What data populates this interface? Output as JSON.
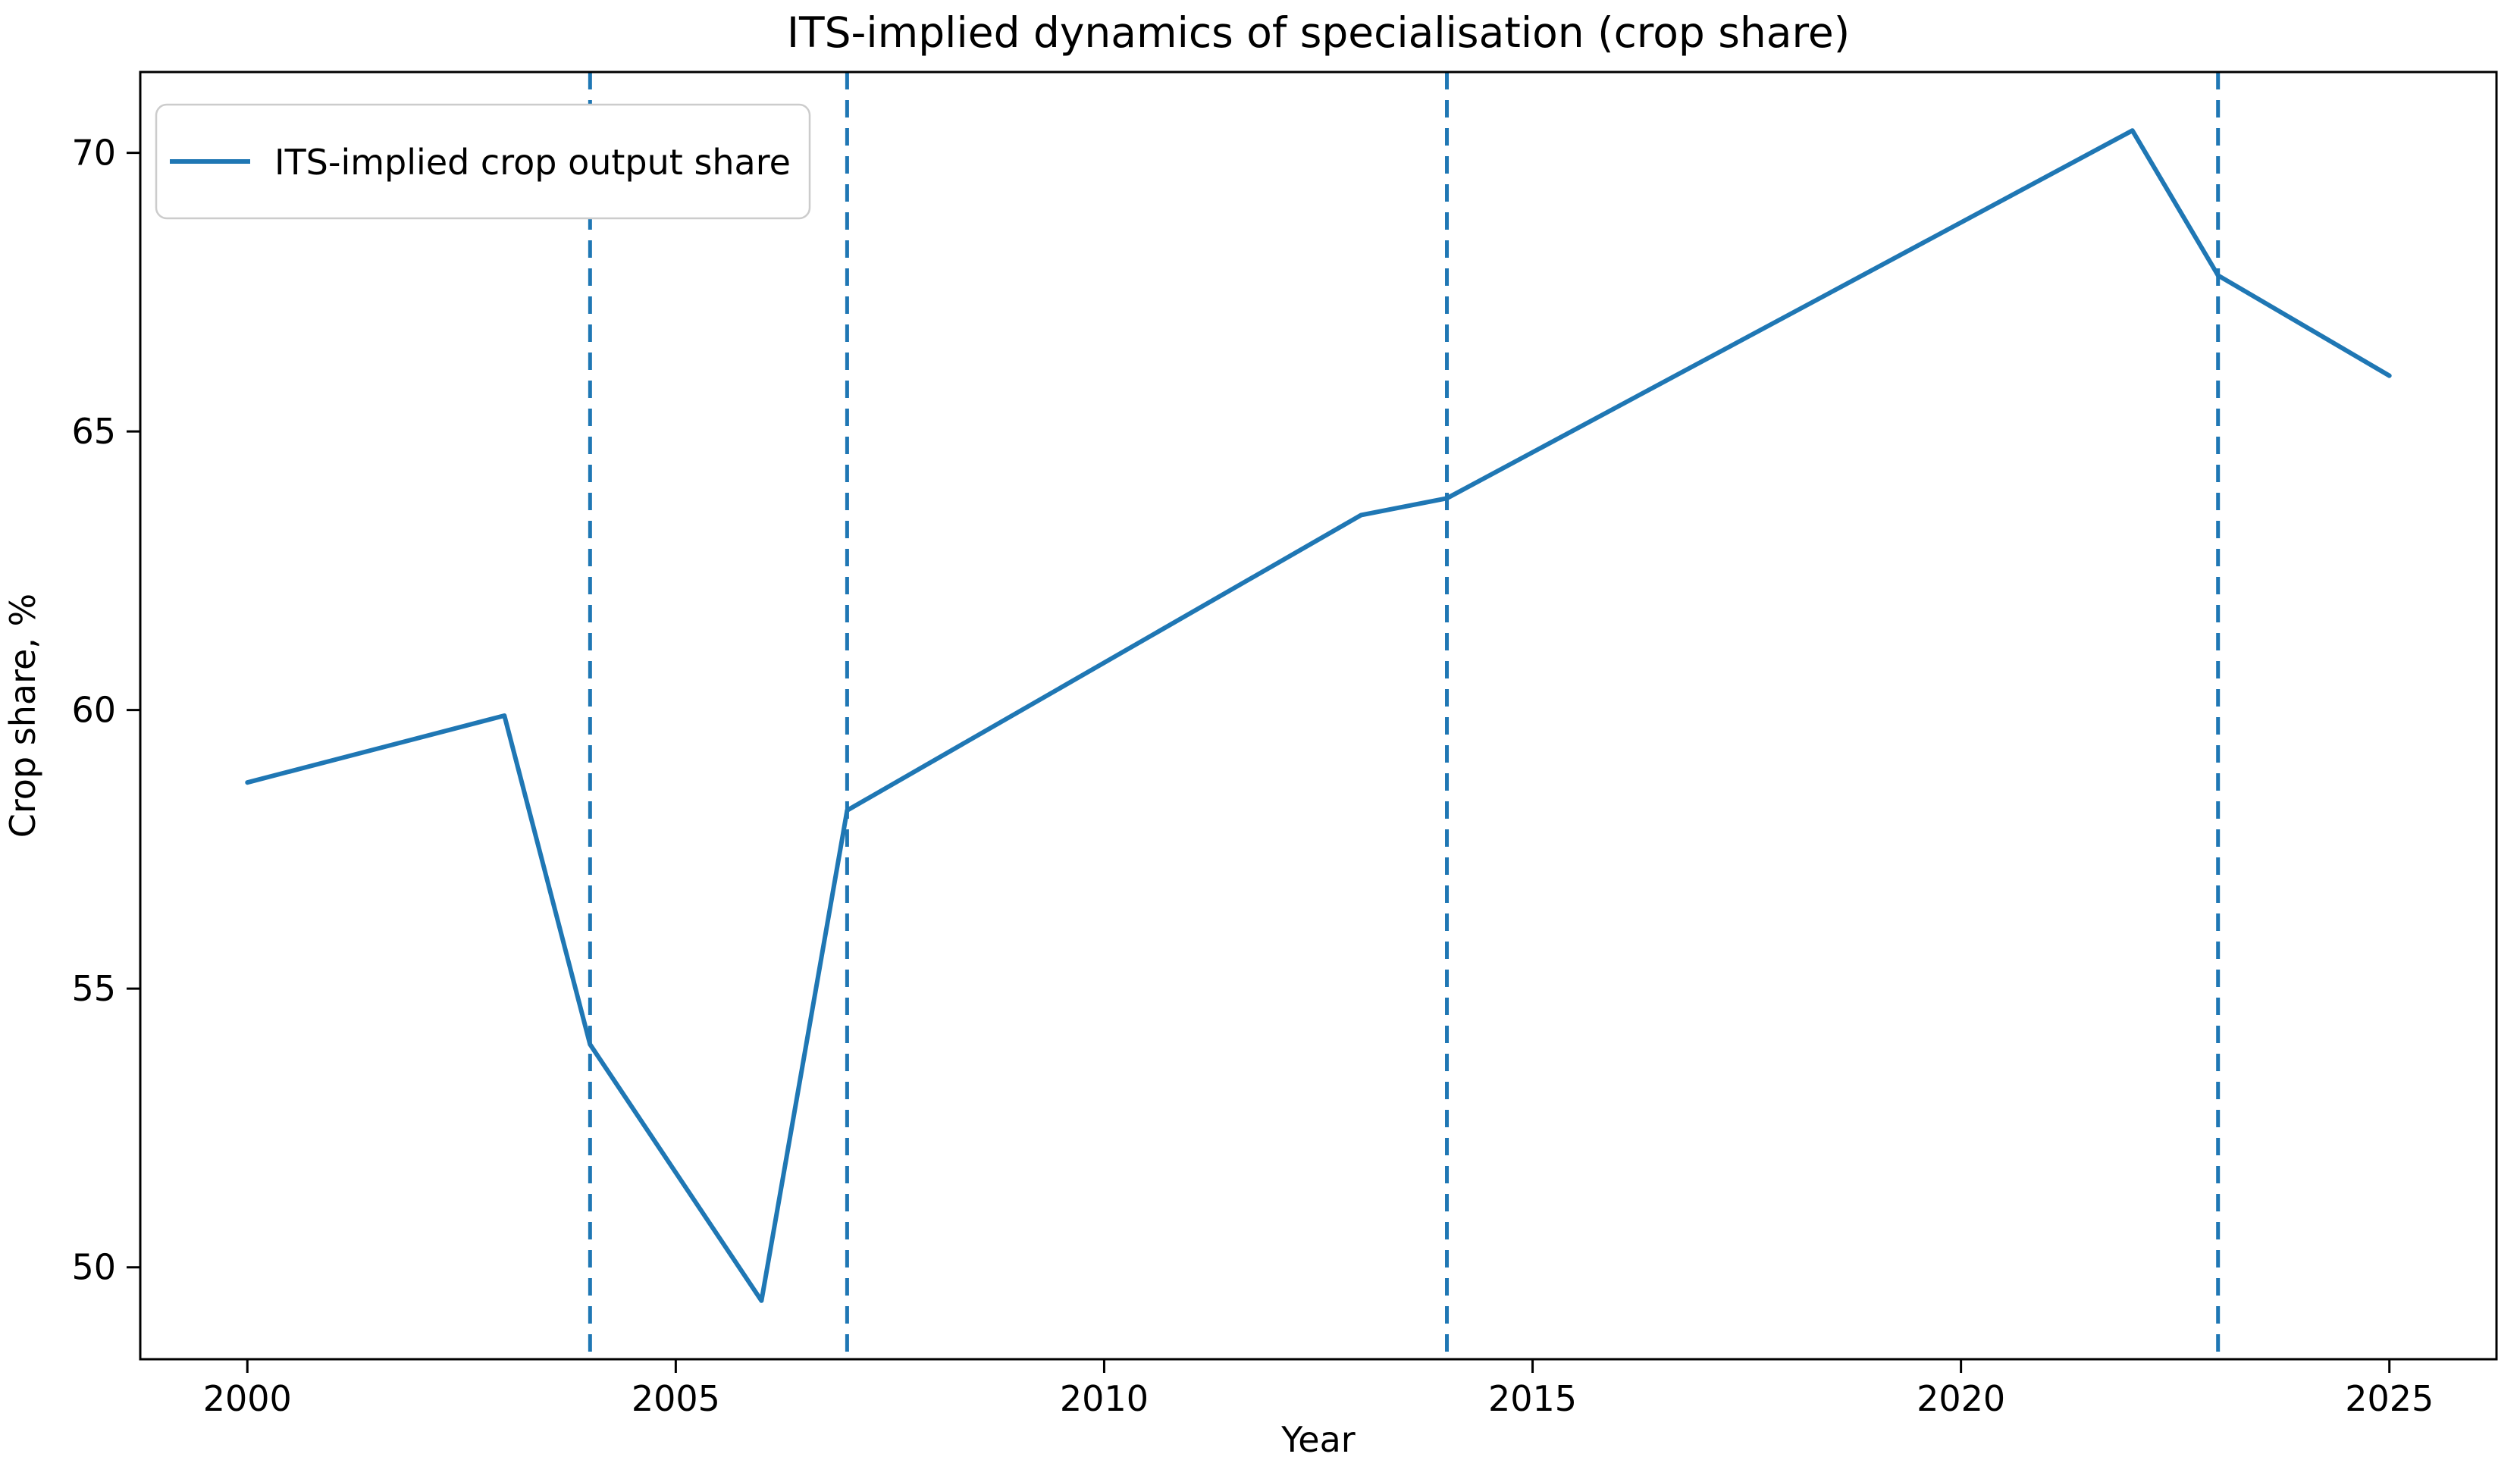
{
  "chart_data": {
    "type": "line",
    "title": "ITS-implied dynamics of specialisation (crop share)",
    "xlabel": "Year",
    "ylabel": "Crop share, %",
    "xlim": [
      1998.75,
      2026.25
    ],
    "ylim": [
      48.35,
      71.45
    ],
    "xticks": [
      2000,
      2005,
      2010,
      2015,
      2020,
      2025
    ],
    "yticks": [
      50,
      55,
      60,
      65,
      70
    ],
    "grid": false,
    "legend_position": "upper-left",
    "series": [
      {
        "name": "ITS-implied crop output share",
        "color": "#1f77b4",
        "style": "solid",
        "x": [
          2000,
          2003,
          2004,
          2006,
          2007,
          2013,
          2014,
          2022,
          2023,
          2025
        ],
        "y": [
          58.7,
          59.9,
          54.0,
          49.4,
          58.2,
          63.5,
          63.8,
          70.4,
          67.8,
          66.0
        ]
      }
    ],
    "vlines": {
      "years": [
        2004,
        2007,
        2014,
        2023
      ],
      "color": "#1f77b4",
      "style": "dashed"
    }
  }
}
